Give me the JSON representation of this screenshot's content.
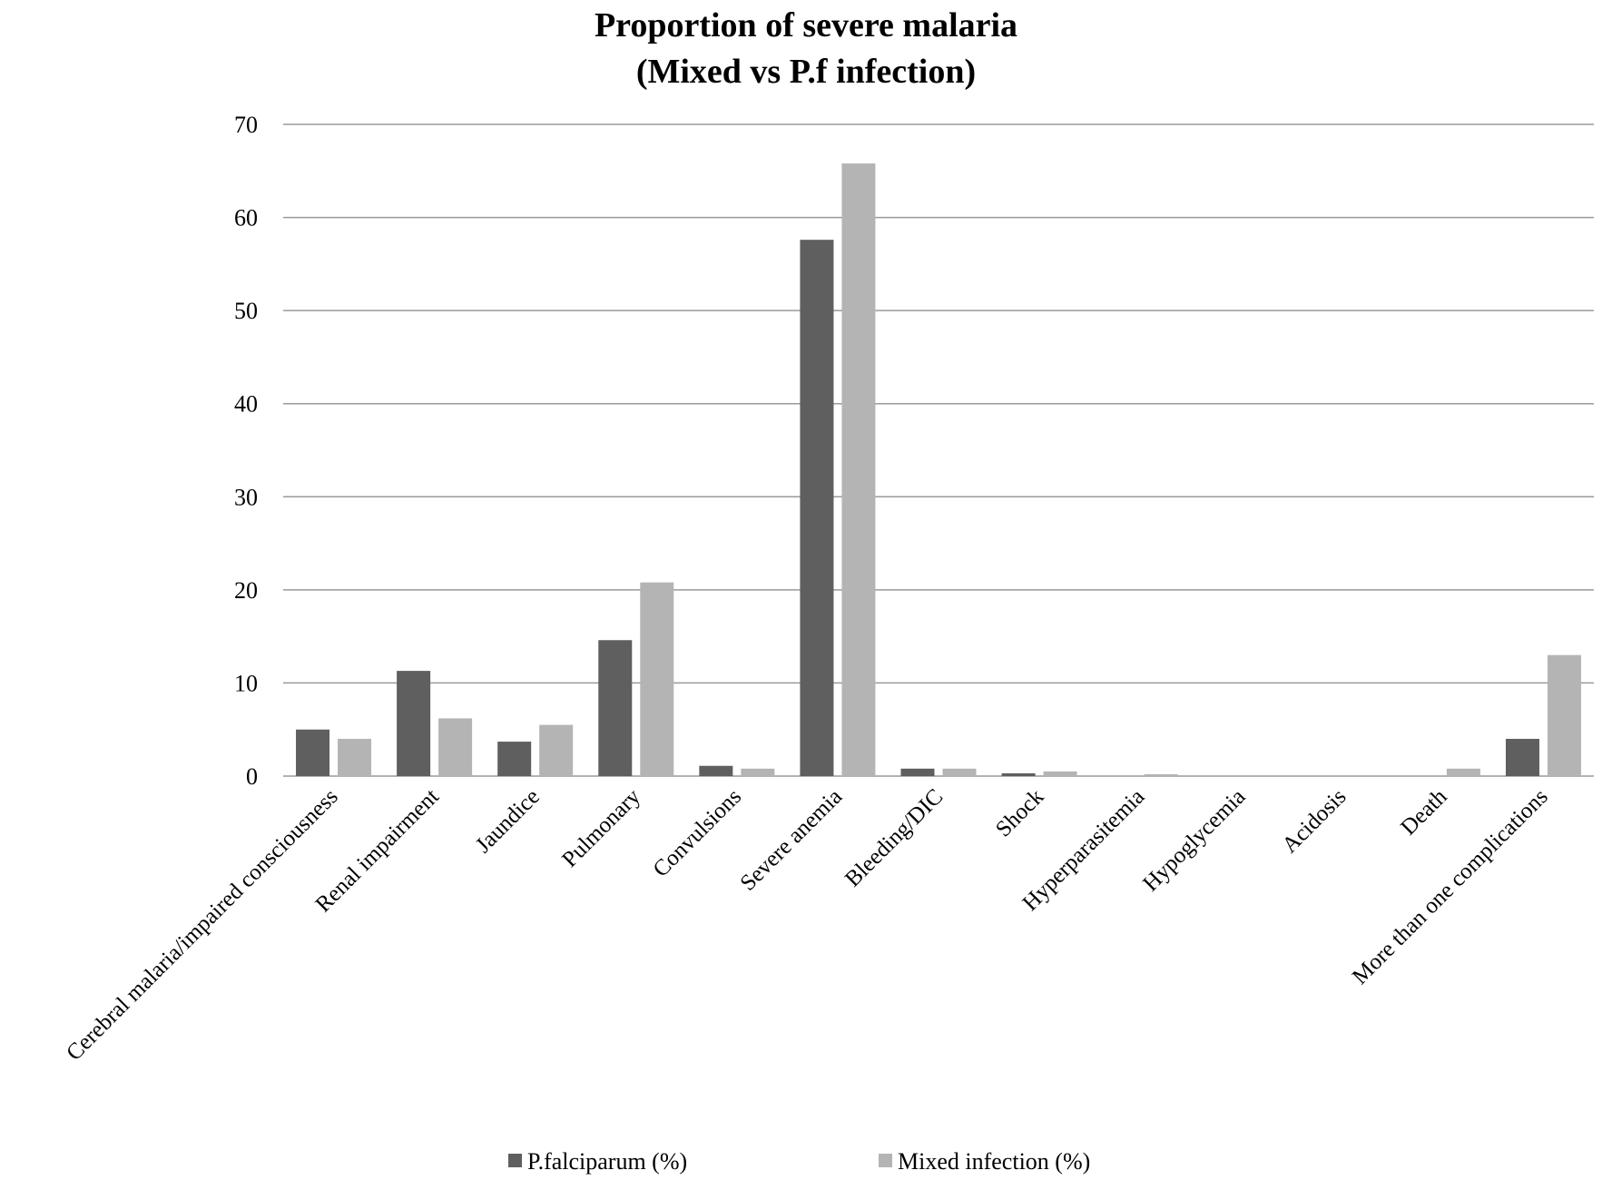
{
  "chart_data": {
    "type": "bar",
    "title": [
      "Proportion  of severe malaria",
      "(Mixed vs P.f infection)"
    ],
    "xlabel": "",
    "ylabel": "",
    "ylim": [
      0,
      70
    ],
    "yticks": [
      "0",
      "10",
      "20",
      "30",
      "40",
      "50",
      "60",
      "70"
    ],
    "grid": true,
    "legend_position": "bottom",
    "categories": [
      "Cerebral malaria/impaired consciousness",
      "Renal impairment",
      "Jaundice",
      "Pulmonary",
      "Convulsions",
      "Severe anemia",
      "Bleeding/DIC",
      "Shock",
      "Hyperparasitemia",
      "Hypoglycemia",
      "Acidosis",
      "Death",
      "More than one complications"
    ],
    "series": [
      {
        "name": "P.falciparum (%)",
        "color": "#5f5f5f",
        "values": [
          5.0,
          11.3,
          3.7,
          14.6,
          1.1,
          57.6,
          0.8,
          0.3,
          0.0,
          0.0,
          0.0,
          0.0,
          4.0
        ]
      },
      {
        "name": "Mixed infection (%)",
        "color": "#b4b4b4",
        "values": [
          4.0,
          6.2,
          5.5,
          20.8,
          0.8,
          65.8,
          0.8,
          0.5,
          0.2,
          0.0,
          0.0,
          0.8,
          13.0
        ]
      }
    ]
  }
}
